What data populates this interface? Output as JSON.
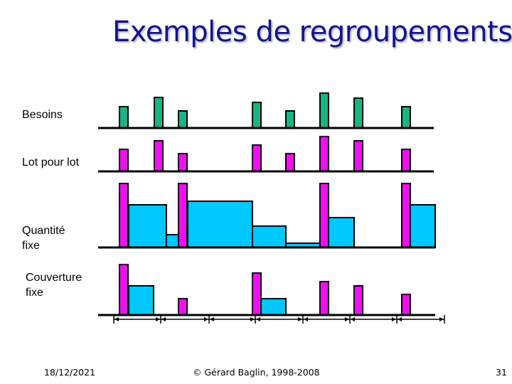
{
  "slide": {
    "title": "Exemples de regroupements",
    "rows": [
      {
        "label": "Besoins"
      },
      {
        "label": "Lot pour lot"
      },
      {
        "label": "Quantité\nfixe"
      },
      {
        "label": "Couverture\nfixe"
      }
    ],
    "footer": {
      "date": "18/12/2021",
      "copyright": "© Gérard Baglin, 1998-2008",
      "page": "31"
    }
  },
  "colors": {
    "title": "#14148a",
    "demand_bar": "#17b585",
    "order_bar": "#ee10ee",
    "stock_block": "#00c8ff",
    "outline": "#000000"
  }
}
